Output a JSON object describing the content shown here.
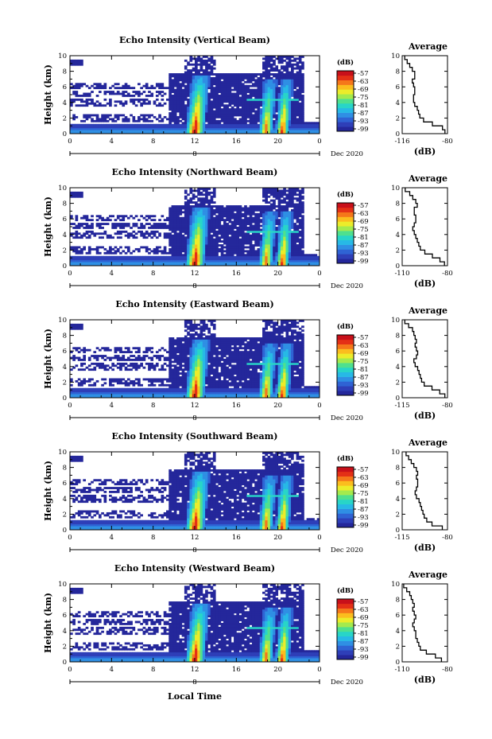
{
  "figure": {
    "xlabel": "Local Time"
  },
  "colorbar": {
    "unit": "(dB)",
    "ticks": [
      "-57",
      "-63",
      "-69",
      "-75",
      "-81",
      "-87",
      "-93",
      "-99"
    ],
    "colors": [
      "#24279b",
      "#2e3fb8",
      "#2f63d4",
      "#2f8fe4",
      "#27b9e6",
      "#28d5c8",
      "#4fe08e",
      "#a4ea4d",
      "#ecec2a",
      "#fbbd1e",
      "#f5771a",
      "#e43016",
      "#c8101a"
    ]
  },
  "chart_data": [
    {
      "type": "heatmap",
      "title": "Echo Intensity (Vertical Beam)",
      "ylabel": "Height (km)",
      "xticks": [
        "0",
        "4",
        "8",
        "12",
        "16",
        "20",
        "0"
      ],
      "yticks": [
        "0",
        "2",
        "4",
        "6",
        "8",
        "10"
      ],
      "xlim": [
        0,
        24
      ],
      "ylim": [
        0,
        10
      ],
      "date_marker": "8",
      "date_label": "Dec 2020",
      "colorbar_range": [
        -99,
        -57
      ],
      "profile": {
        "title": "Average",
        "xlabel": "(dB)",
        "xticks": [
          "-116",
          "-80"
        ],
        "xlim": [
          -116,
          -80
        ],
        "yticks": [
          "0",
          "2",
          "4",
          "6",
          "8",
          "10"
        ],
        "heights": [
          0,
          0.5,
          1,
          1.5,
          2,
          2.5,
          3,
          3.5,
          4,
          4.5,
          5,
          5.5,
          6,
          6.5,
          7,
          7.5,
          8,
          8.5,
          9,
          9.5
        ],
        "values": [
          -82,
          -84,
          -92,
          -99,
          -102,
          -103,
          -104,
          -106,
          -107,
          -107,
          -106,
          -106,
          -107,
          -108,
          -106,
          -106,
          -108,
          -110,
          -112,
          -114
        ]
      }
    },
    {
      "type": "heatmap",
      "title": "Echo Intensity (Northward Beam)",
      "ylabel": "Height (km)",
      "xticks": [
        "0",
        "4",
        "8",
        "12",
        "16",
        "20",
        "0"
      ],
      "yticks": [
        "0",
        "2",
        "4",
        "6",
        "8",
        "10"
      ],
      "xlim": [
        0,
        24
      ],
      "ylim": [
        0,
        10
      ],
      "date_marker": "8",
      "date_label": "Dec 2020",
      "colorbar_range": [
        -99,
        -57
      ],
      "profile": {
        "title": "Average",
        "xlabel": "(dB)",
        "xticks": [
          "-110",
          "-80"
        ],
        "xlim": [
          -110,
          -80
        ],
        "yticks": [
          "0",
          "2",
          "4",
          "6",
          "8",
          "10"
        ],
        "heights": [
          0,
          0.5,
          1,
          1.5,
          2,
          2.5,
          3,
          3.5,
          4,
          4.5,
          5,
          5.5,
          6,
          6.5,
          7,
          7.5,
          8,
          8.5,
          9,
          9.5
        ],
        "values": [
          -82,
          -85,
          -90,
          -95,
          -98,
          -99,
          -100,
          -101,
          -102,
          -103,
          -102,
          -101,
          -101,
          -102,
          -102,
          -100,
          -101,
          -103,
          -105,
          -108
        ]
      }
    },
    {
      "type": "heatmap",
      "title": "Echo Intensity (Eastward Beam)",
      "ylabel": "Height (km)",
      "xticks": [
        "0",
        "4",
        "8",
        "12",
        "16",
        "20",
        "0"
      ],
      "yticks": [
        "0",
        "2",
        "4",
        "6",
        "8",
        "10"
      ],
      "xlim": [
        0,
        24
      ],
      "ylim": [
        0,
        10
      ],
      "date_marker": "8",
      "date_label": "Dec 2020",
      "colorbar_range": [
        -99,
        -57
      ],
      "profile": {
        "title": "Average",
        "xlabel": "(dB)",
        "xticks": [
          "-115",
          "-80"
        ],
        "xlim": [
          -115,
          -80
        ],
        "yticks": [
          "0",
          "2",
          "4",
          "6",
          "8",
          "10"
        ],
        "heights": [
          0,
          0.5,
          1,
          1.5,
          2,
          2.5,
          3,
          3.5,
          4,
          4.5,
          5,
          5.5,
          6,
          6.5,
          7,
          7.5,
          8,
          8.5,
          9,
          9.5
        ],
        "values": [
          -82,
          -86,
          -92,
          -98,
          -100,
          -101,
          -102,
          -103,
          -105,
          -106,
          -104,
          -103,
          -104,
          -105,
          -104,
          -105,
          -106,
          -107,
          -110,
          -113
        ]
      }
    },
    {
      "type": "heatmap",
      "title": "Echo Intensity (Southward Beam)",
      "ylabel": "Height (km)",
      "xticks": [
        "0",
        "4",
        "8",
        "12",
        "16",
        "20",
        "0"
      ],
      "yticks": [
        "0",
        "2",
        "4",
        "6",
        "8",
        "10"
      ],
      "xlim": [
        0,
        24
      ],
      "ylim": [
        0,
        10
      ],
      "date_marker": "8",
      "date_label": "Dec 2020",
      "colorbar_range": [
        -99,
        -57
      ],
      "profile": {
        "title": "Average",
        "xlabel": "(dB)",
        "xticks": [
          "-115",
          "-80"
        ],
        "xlim": [
          -115,
          -80
        ],
        "yticks": [
          "0",
          "2",
          "4",
          "6",
          "8",
          "10"
        ],
        "heights": [
          0,
          0.5,
          1,
          1.5,
          2,
          2.5,
          3,
          3.5,
          4,
          4.5,
          5,
          5.5,
          6,
          6.5,
          7,
          7.5,
          8,
          8.5,
          9,
          9.5
        ],
        "values": [
          -84,
          -92,
          -96,
          -98,
          -99,
          -100,
          -101,
          -102,
          -104,
          -105,
          -104,
          -103,
          -103,
          -104,
          -103,
          -104,
          -106,
          -108,
          -110,
          -112
        ]
      }
    },
    {
      "type": "heatmap",
      "title": "Echo Intensity (Westward Beam)",
      "ylabel": "Height (km)",
      "xticks": [
        "0",
        "4",
        "8",
        "12",
        "16",
        "20",
        "0"
      ],
      "yticks": [
        "0",
        "2",
        "4",
        "6",
        "8",
        "10"
      ],
      "xlim": [
        0,
        24
      ],
      "ylim": [
        0,
        10
      ],
      "date_marker": "8",
      "date_label": "Dec 2020",
      "colorbar_range": [
        -99,
        -57
      ],
      "profile": {
        "title": "Average",
        "xlabel": "(dB)",
        "xticks": [
          "-110",
          "-80"
        ],
        "xlim": [
          -110,
          -80
        ],
        "yticks": [
          "0",
          "2",
          "4",
          "6",
          "8",
          "10"
        ],
        "heights": [
          0,
          0.5,
          1,
          1.5,
          2,
          2.5,
          3,
          3.5,
          4,
          4.5,
          5,
          5.5,
          6,
          6.5,
          7,
          7.5,
          8,
          8.5,
          9,
          9.5
        ],
        "values": [
          -84,
          -88,
          -94,
          -98,
          -99,
          -100,
          -101,
          -101,
          -102,
          -103,
          -102,
          -101,
          -102,
          -103,
          -102,
          -103,
          -104,
          -105,
          -107,
          -109
        ]
      }
    }
  ]
}
